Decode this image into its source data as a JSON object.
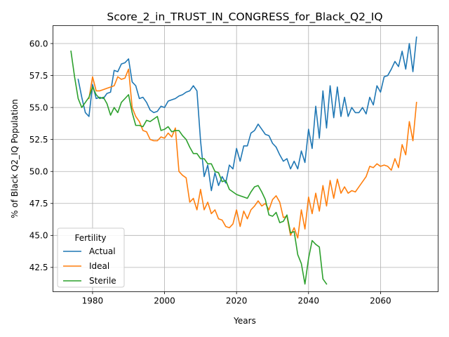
{
  "chart_data": {
    "type": "line",
    "title": "Score_2_in_TRUST_IN_CONGRESS_for_Black_Q2_IQ",
    "xlabel": "Years",
    "ylabel": "% of Black Q2_IQ Population",
    "xlim": [
      1969,
      2076
    ],
    "ylim": [
      40.6,
      61.4
    ],
    "xticks": [
      1980,
      2000,
      2020,
      2040,
      2060
    ],
    "yticks": [
      42.5,
      45.0,
      47.5,
      50.0,
      52.5,
      55.0,
      57.5,
      60.0
    ],
    "xtick_labels": [
      "1980",
      "2000",
      "2020",
      "2040",
      "2060"
    ],
    "ytick_labels": [
      "42.5",
      "45.0",
      "47.5",
      "50.0",
      "52.5",
      "55.0",
      "57.5",
      "60.0"
    ],
    "grid": true,
    "legend": {
      "title": "Fertility",
      "position": "lower-left"
    },
    "series": [
      {
        "name": "Actual",
        "color": "#1f77b4",
        "x": [
          1976,
          1977,
          1978,
          1979,
          1980,
          1981,
          1982,
          1983,
          1984,
          1985,
          1986,
          1987,
          1988,
          1989,
          1990,
          1991,
          1992,
          1993,
          1994,
          1995,
          1996,
          1997,
          1998,
          1999,
          2000,
          2001,
          2002,
          2003,
          2004,
          2005,
          2006,
          2007,
          2008,
          2009,
          2010,
          2011,
          2012,
          2013,
          2014,
          2015,
          2016,
          2017,
          2018,
          2019,
          2020,
          2021,
          2022,
          2023,
          2024,
          2025,
          2026,
          2027,
          2028,
          2029,
          2030,
          2031,
          2032,
          2033,
          2034,
          2035,
          2036,
          2037,
          2038,
          2039,
          2040,
          2041,
          2042,
          2043,
          2044,
          2045,
          2046,
          2047,
          2048,
          2049,
          2050,
          2051,
          2052,
          2053,
          2054,
          2055,
          2056,
          2057,
          2058,
          2059,
          2060,
          2061,
          2062,
          2063,
          2064,
          2065,
          2066,
          2067,
          2068,
          2069,
          2070
        ],
        "y": [
          57.2,
          55.8,
          54.6,
          54.3,
          56.8,
          55.7,
          55.8,
          55.7,
          56.1,
          56.2,
          57.9,
          57.8,
          58.4,
          58.5,
          58.8,
          57.0,
          56.7,
          55.7,
          55.8,
          55.4,
          54.8,
          54.6,
          54.7,
          55.1,
          55.0,
          55.5,
          55.6,
          55.7,
          55.9,
          56.0,
          56.2,
          56.3,
          56.7,
          56.3,
          52.4,
          49.6,
          50.5,
          48.5,
          49.9,
          48.9,
          49.6,
          49.1,
          50.5,
          50.2,
          51.8,
          50.8,
          52.0,
          52.0,
          53.0,
          53.2,
          53.7,
          53.3,
          52.9,
          52.8,
          52.2,
          51.9,
          51.3,
          50.8,
          51.0,
          50.2,
          50.8,
          50.2,
          51.6,
          50.7,
          53.3,
          51.8,
          55.1,
          52.6,
          56.3,
          53.4,
          56.7,
          54.2,
          56.6,
          54.3,
          55.8,
          54.3,
          55.0,
          54.6,
          54.6,
          55.0,
          54.5,
          55.8,
          55.2,
          56.7,
          56.2,
          57.4,
          57.5,
          58.0,
          58.6,
          58.2,
          59.4,
          58.0,
          60.0,
          57.8,
          60.5
        ]
      },
      {
        "name": "Ideal",
        "color": "#ff7f0e",
        "x": [
          1979,
          1980,
          1981,
          1982,
          1983,
          1984,
          1985,
          1986,
          1987,
          1988,
          1989,
          1990,
          1991,
          1992,
          1993,
          1994,
          1995,
          1996,
          1997,
          1998,
          1999,
          2000,
          2001,
          2002,
          2003,
          2004,
          2005,
          2006,
          2007,
          2008,
          2009,
          2010,
          2011,
          2012,
          2013,
          2014,
          2015,
          2016,
          2017,
          2018,
          2019,
          2020,
          2021,
          2022,
          2023,
          2024,
          2025,
          2026,
          2027,
          2028,
          2029,
          2030,
          2031,
          2032,
          2033,
          2034,
          2035,
          2036,
          2037,
          2038,
          2039,
          2040,
          2041,
          2042,
          2043,
          2044,
          2045,
          2046,
          2047,
          2048,
          2049,
          2050,
          2051,
          2052,
          2053,
          2054,
          2055,
          2056,
          2057,
          2058,
          2059,
          2060,
          2061,
          2062,
          2063,
          2064,
          2065,
          2066,
          2067,
          2068,
          2069,
          2070
        ],
        "y": [
          55.7,
          57.4,
          56.3,
          56.3,
          56.4,
          56.5,
          56.6,
          56.7,
          57.4,
          57.2,
          57.3,
          58.0,
          55.0,
          54.3,
          53.9,
          53.2,
          53.1,
          52.5,
          52.4,
          52.4,
          52.7,
          52.6,
          53.0,
          52.7,
          53.4,
          50.0,
          49.7,
          49.5,
          47.6,
          47.9,
          47.0,
          48.6,
          47.0,
          47.6,
          46.7,
          47.0,
          46.3,
          46.2,
          45.7,
          45.6,
          45.9,
          47.0,
          45.7,
          46.9,
          46.3,
          47.0,
          47.3,
          47.7,
          47.3,
          47.5,
          47.0,
          47.8,
          48.1,
          47.6,
          46.4,
          46.5,
          45.0,
          45.6,
          44.8,
          47.0,
          45.5,
          48.0,
          46.7,
          48.3,
          46.9,
          48.9,
          47.3,
          49.3,
          47.9,
          49.4,
          48.3,
          48.8,
          48.3,
          48.5,
          48.4,
          48.8,
          49.2,
          49.6,
          50.4,
          50.3,
          50.6,
          50.4,
          50.5,
          50.4,
          50.1,
          51.0,
          50.3,
          52.1,
          51.3,
          53.9,
          52.4,
          55.4
        ]
      },
      {
        "name": "Sterile",
        "color": "#2ca02c",
        "x": [
          1974,
          1975,
          1976,
          1977,
          1978,
          1979,
          1980,
          1981,
          1982,
          1983,
          1984,
          1985,
          1986,
          1987,
          1988,
          1989,
          1990,
          1991,
          1992,
          1993,
          1994,
          1995,
          1996,
          1997,
          1998,
          1999,
          2000,
          2001,
          2002,
          2003,
          2004,
          2005,
          2006,
          2007,
          2008,
          2009,
          2010,
          2011,
          2012,
          2013,
          2014,
          2015,
          2016,
          2017,
          2018,
          2019,
          2020,
          2021,
          2022,
          2023,
          2024,
          2025,
          2026,
          2027,
          2028,
          2029,
          2030,
          2031,
          2032,
          2033,
          2034,
          2035,
          2036,
          2037,
          2038,
          2039,
          2040,
          2041,
          2042,
          2043,
          2044,
          2045
        ],
        "y": [
          59.4,
          57.4,
          55.7,
          55.0,
          55.4,
          55.8,
          56.6,
          56.0,
          55.7,
          55.8,
          55.3,
          54.4,
          55.0,
          54.6,
          55.4,
          55.7,
          56.0,
          54.6,
          53.6,
          53.6,
          53.5,
          54.0,
          53.9,
          54.1,
          54.3,
          53.2,
          53.3,
          53.5,
          53.1,
          53.2,
          53.2,
          52.8,
          52.5,
          51.9,
          51.4,
          51.4,
          51.0,
          51.0,
          50.6,
          50.6,
          50.0,
          49.9,
          49.2,
          49.3,
          48.6,
          48.4,
          48.2,
          48.1,
          48.0,
          47.9,
          48.4,
          48.8,
          48.9,
          48.4,
          47.8,
          46.6,
          46.5,
          46.8,
          46.0,
          46.1,
          46.6,
          45.2,
          45.3,
          43.5,
          42.8,
          41.2,
          43.2,
          44.6,
          44.3,
          44.1,
          41.6,
          41.2
        ]
      }
    ]
  }
}
